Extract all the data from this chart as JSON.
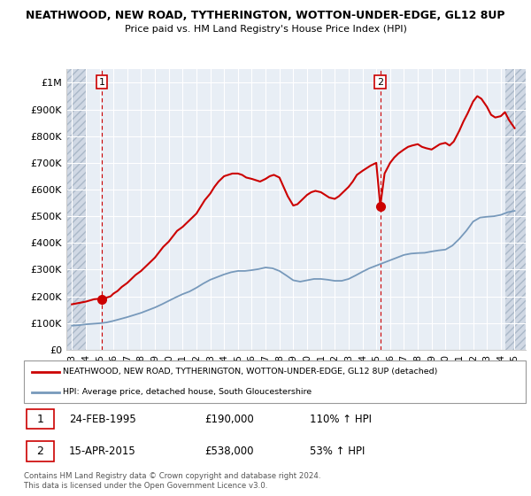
{
  "title": "NEATHWOOD, NEW ROAD, TYTHERINGTON, WOTTON-UNDER-EDGE, GL12 8UP",
  "subtitle": "Price paid vs. HM Land Registry's House Price Index (HPI)",
  "ylim": [
    0,
    1050000
  ],
  "yticks": [
    0,
    100000,
    200000,
    300000,
    400000,
    500000,
    600000,
    700000,
    800000,
    900000,
    1000000
  ],
  "ytick_labels": [
    "£0",
    "£100K",
    "£200K",
    "£300K",
    "£400K",
    "£500K",
    "£600K",
    "£700K",
    "£800K",
    "£900K",
    "£1M"
  ],
  "xlim_start": 1992.6,
  "xlim_end": 2025.8,
  "xticks": [
    1993,
    1994,
    1995,
    1996,
    1997,
    1998,
    1999,
    2000,
    2001,
    2002,
    2003,
    2004,
    2005,
    2006,
    2007,
    2008,
    2009,
    2010,
    2011,
    2012,
    2013,
    2014,
    2015,
    2016,
    2017,
    2018,
    2019,
    2020,
    2021,
    2022,
    2023,
    2024,
    2025
  ],
  "xtick_labels": [
    "'93",
    "'94",
    "'95",
    "'96",
    "'97",
    "'98",
    "'99",
    "'00",
    "'01",
    "'02",
    "'03",
    "'04",
    "'05",
    "'06",
    "'07",
    "'08",
    "'09",
    "'10",
    "'11",
    "'12",
    "'13",
    "'14",
    "'15",
    "'16",
    "'17",
    "'18",
    "'19",
    "'20",
    "'21",
    "'22",
    "'23",
    "'24",
    "'25"
  ],
  "bg_color": "#ffffff",
  "plot_bg_color": "#e8eef5",
  "hatch_bg_color": "#d0d8e4",
  "grid_color": "#ffffff",
  "red_line_color": "#cc0000",
  "blue_line_color": "#7799bb",
  "sale1_x": 1995.15,
  "sale1_y": 190000,
  "sale1_label": "1",
  "sale2_x": 2015.29,
  "sale2_y": 538000,
  "sale2_label": "2",
  "legend_red_label": "NEATHWOOD, NEW ROAD, TYTHERINGTON, WOTTON-UNDER-EDGE, GL12 8UP (detached)",
  "legend_blue_label": "HPI: Average price, detached house, South Gloucestershire",
  "table_data": [
    {
      "num": "1",
      "date": "24-FEB-1995",
      "price": "£190,000",
      "hpi": "110% ↑ HPI"
    },
    {
      "num": "2",
      "date": "15-APR-2015",
      "price": "£538,000",
      "hpi": "53% ↑ HPI"
    }
  ],
  "footnote": "Contains HM Land Registry data © Crown copyright and database right 2024.\nThis data is licensed under the Open Government Licence v3.0.",
  "red_line_x": [
    1993.0,
    1993.2,
    1993.4,
    1993.6,
    1993.8,
    1994.0,
    1994.2,
    1994.4,
    1994.6,
    1994.8,
    1995.15,
    1995.5,
    1995.8,
    1996.0,
    1996.3,
    1996.6,
    1997.0,
    1997.3,
    1997.6,
    1998.0,
    1998.3,
    1998.6,
    1999.0,
    1999.3,
    1999.6,
    2000.0,
    2000.3,
    2000.6,
    2001.0,
    2001.3,
    2001.6,
    2002.0,
    2002.3,
    2002.6,
    2003.0,
    2003.3,
    2003.6,
    2004.0,
    2004.3,
    2004.6,
    2005.0,
    2005.3,
    2005.6,
    2006.0,
    2006.3,
    2006.6,
    2007.0,
    2007.3,
    2007.6,
    2008.0,
    2008.3,
    2008.6,
    2009.0,
    2009.3,
    2009.6,
    2010.0,
    2010.3,
    2010.6,
    2011.0,
    2011.3,
    2011.6,
    2012.0,
    2012.3,
    2012.6,
    2013.0,
    2013.3,
    2013.6,
    2014.0,
    2014.3,
    2014.6,
    2015.0,
    2015.29,
    2015.6,
    2016.0,
    2016.3,
    2016.6,
    2017.0,
    2017.3,
    2017.6,
    2018.0,
    2018.3,
    2018.6,
    2019.0,
    2019.3,
    2019.6,
    2020.0,
    2020.3,
    2020.6,
    2021.0,
    2021.3,
    2021.6,
    2022.0,
    2022.3,
    2022.6,
    2023.0,
    2023.3,
    2023.6,
    2024.0,
    2024.3,
    2024.6,
    2025.0
  ],
  "red_line_y": [
    170000,
    172000,
    174000,
    176000,
    178000,
    180000,
    183000,
    186000,
    189000,
    190000,
    190000,
    195000,
    200000,
    210000,
    220000,
    235000,
    250000,
    265000,
    280000,
    295000,
    310000,
    325000,
    345000,
    365000,
    385000,
    405000,
    425000,
    445000,
    460000,
    475000,
    490000,
    510000,
    535000,
    560000,
    585000,
    610000,
    630000,
    650000,
    655000,
    660000,
    660000,
    655000,
    645000,
    640000,
    635000,
    630000,
    640000,
    650000,
    655000,
    645000,
    610000,
    575000,
    540000,
    545000,
    560000,
    580000,
    590000,
    595000,
    590000,
    580000,
    570000,
    565000,
    575000,
    590000,
    610000,
    630000,
    655000,
    670000,
    680000,
    690000,
    700000,
    538000,
    660000,
    700000,
    720000,
    735000,
    750000,
    760000,
    765000,
    770000,
    760000,
    755000,
    750000,
    760000,
    770000,
    775000,
    765000,
    780000,
    820000,
    855000,
    885000,
    930000,
    950000,
    940000,
    910000,
    880000,
    870000,
    875000,
    890000,
    860000,
    830000
  ],
  "blue_line_x": [
    1993.0,
    1993.5,
    1994.0,
    1994.5,
    1995.0,
    1995.5,
    1996.0,
    1996.5,
    1997.0,
    1997.5,
    1998.0,
    1998.5,
    1999.0,
    1999.5,
    2000.0,
    2000.5,
    2001.0,
    2001.5,
    2002.0,
    2002.5,
    2003.0,
    2003.5,
    2004.0,
    2004.5,
    2005.0,
    2005.5,
    2006.0,
    2006.5,
    2007.0,
    2007.5,
    2008.0,
    2008.5,
    2009.0,
    2009.5,
    2010.0,
    2010.5,
    2011.0,
    2011.5,
    2012.0,
    2012.5,
    2013.0,
    2013.5,
    2014.0,
    2014.5,
    2015.0,
    2015.5,
    2016.0,
    2016.5,
    2017.0,
    2017.5,
    2018.0,
    2018.5,
    2019.0,
    2019.5,
    2020.0,
    2020.5,
    2021.0,
    2021.5,
    2022.0,
    2022.5,
    2023.0,
    2023.5,
    2024.0,
    2024.5,
    2025.0
  ],
  "blue_line_y": [
    90000,
    92000,
    95000,
    97000,
    99000,
    102000,
    108000,
    115000,
    122000,
    130000,
    138000,
    148000,
    158000,
    170000,
    183000,
    196000,
    208000,
    218000,
    232000,
    248000,
    262000,
    272000,
    282000,
    290000,
    295000,
    295000,
    298000,
    302000,
    308000,
    305000,
    295000,
    278000,
    260000,
    255000,
    260000,
    265000,
    265000,
    262000,
    258000,
    258000,
    265000,
    278000,
    292000,
    305000,
    315000,
    325000,
    335000,
    345000,
    355000,
    360000,
    362000,
    363000,
    368000,
    372000,
    375000,
    390000,
    415000,
    445000,
    480000,
    495000,
    498000,
    500000,
    505000,
    515000,
    520000
  ]
}
